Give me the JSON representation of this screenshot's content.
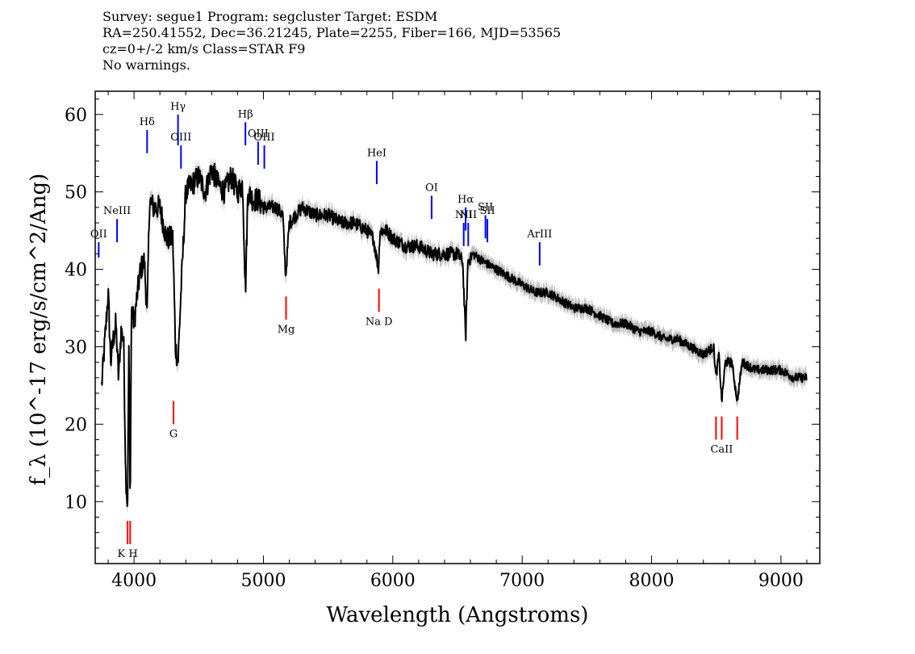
{
  "header": {
    "line1": "Survey: segue1 Program: segcluster Target: ESDM",
    "line2": "RA=250.41552, Dec=36.21245, Plate=2255, Fiber=166, MJD=53565",
    "line3": "cz=0+/-2 km/s Class=STAR F9",
    "line4": "No warnings."
  },
  "chart_data": {
    "type": "line",
    "xlabel": "Wavelength (Angstroms)",
    "ylabel": "f_λ (10^-17 erg/s/cm^2/Ang)",
    "xlim": [
      3700,
      9300
    ],
    "ylim": [
      2,
      63
    ],
    "xticks": [
      4000,
      5000,
      6000,
      7000,
      8000,
      9000
    ],
    "yticks": [
      10,
      20,
      30,
      40,
      50,
      60
    ],
    "colors": {
      "flux": "#000000",
      "error_band": "#bbbbbb",
      "emission": "#0000ff",
      "absorption": "#ff0000"
    },
    "spectrum": {
      "x": [
        3750,
        3780,
        3800,
        3820,
        3840,
        3860,
        3880,
        3900,
        3920,
        3935,
        3950,
        3960,
        3970,
        3980,
        4000,
        4020,
        4050,
        4080,
        4101,
        4120,
        4150,
        4200,
        4250,
        4300,
        4320,
        4340,
        4360,
        4400,
        4450,
        4500,
        4550,
        4600,
        4650,
        4700,
        4750,
        4800,
        4840,
        4861,
        4880,
        4920,
        4960,
        5000,
        5050,
        5100,
        5150,
        5172,
        5200,
        5250,
        5300,
        5400,
        5500,
        5600,
        5700,
        5800,
        5850,
        5890,
        5900,
        5950,
        6000,
        6100,
        6200,
        6300,
        6400,
        6500,
        6540,
        6563,
        6580,
        6620,
        6700,
        6800,
        6900,
        7000,
        7100,
        7200,
        7300,
        7400,
        7500,
        7600,
        7700,
        7800,
        7900,
        8000,
        8100,
        8200,
        8300,
        8400,
        8480,
        8498,
        8520,
        8542,
        8570,
        8620,
        8662,
        8700,
        8800,
        8900,
        9000,
        9100,
        9200
      ],
      "y": [
        25,
        32,
        37,
        28,
        31,
        33,
        26,
        32,
        31,
        14,
        9,
        30,
        9,
        35,
        33,
        36,
        40,
        41,
        34,
        49,
        48,
        48,
        44,
        44,
        30,
        28,
        36,
        50,
        51,
        52,
        50,
        53,
        51,
        50,
        52,
        50,
        51,
        37,
        50,
        49,
        49,
        48,
        48,
        48,
        47,
        39,
        46,
        47,
        48,
        47,
        47,
        46,
        46,
        45,
        44,
        40,
        45,
        45,
        44,
        43,
        43,
        42,
        42,
        42,
        41,
        31,
        41,
        42,
        41,
        40,
        39,
        38,
        37,
        37,
        36,
        35,
        35,
        34,
        33,
        33,
        32,
        32,
        31,
        31,
        30,
        29,
        30,
        26,
        29,
        23,
        28,
        28,
        23,
        28,
        27,
        27,
        27,
        26,
        26
      ]
    },
    "emission_lines": [
      {
        "label": "OII",
        "wave": 3727,
        "y1": 41.5,
        "y2": 43.5
      },
      {
        "label": "NeIII",
        "wave": 3869,
        "y1": 43.5,
        "y2": 46.5
      },
      {
        "label": "Hδ",
        "wave": 4101,
        "y1": 55,
        "y2": 58
      },
      {
        "label": "Hγ",
        "wave": 4340,
        "y1": 56,
        "y2": 60
      },
      {
        "label": "OIII",
        "wave": 4363,
        "y1": 53,
        "y2": 56
      },
      {
        "label": "Hβ",
        "wave": 4861,
        "y1": 56,
        "y2": 59
      },
      {
        "label": "OIII",
        "wave": 4959,
        "y1": 53.5,
        "y2": 56.5
      },
      {
        "label": "OIII",
        "wave": 5007,
        "y1": 53,
        "y2": 56
      },
      {
        "label": "HeI",
        "wave": 5876,
        "y1": 51,
        "y2": 54
      },
      {
        "label": "OI",
        "wave": 6300,
        "y1": 46.5,
        "y2": 49.5
      },
      {
        "label": "NII",
        "wave": 6548,
        "y1": 43,
        "y2": 46
      },
      {
        "label": "Hα",
        "wave": 6563,
        "y1": 45,
        "y2": 48
      },
      {
        "label": "NII",
        "wave": 6583,
        "y1": 43,
        "y2": 46
      },
      {
        "label": "SII",
        "wave": 6716,
        "y1": 44,
        "y2": 47
      },
      {
        "label": "SII",
        "wave": 6731,
        "y1": 43.5,
        "y2": 46.5
      },
      {
        "label": "ArIII",
        "wave": 7135,
        "y1": 40.5,
        "y2": 43.5
      }
    ],
    "absorption_lines": [
      {
        "label": "K H",
        "wave": 3950,
        "y1": 4.5,
        "y2": 7.5
      },
      {
        "label": "G",
        "wave": 4305,
        "y1": 20,
        "y2": 23
      },
      {
        "label": "Mg",
        "wave": 5175,
        "y1": 33.5,
        "y2": 36.5
      },
      {
        "label": "Na  D",
        "wave": 5893,
        "y1": 34.5,
        "y2": 37.5
      },
      {
        "label": "CaII",
        "wave": 8542,
        "y1": 18,
        "y2": 21
      }
    ],
    "absorption_extra_ticks": [
      3970,
      8498,
      8662
    ]
  }
}
